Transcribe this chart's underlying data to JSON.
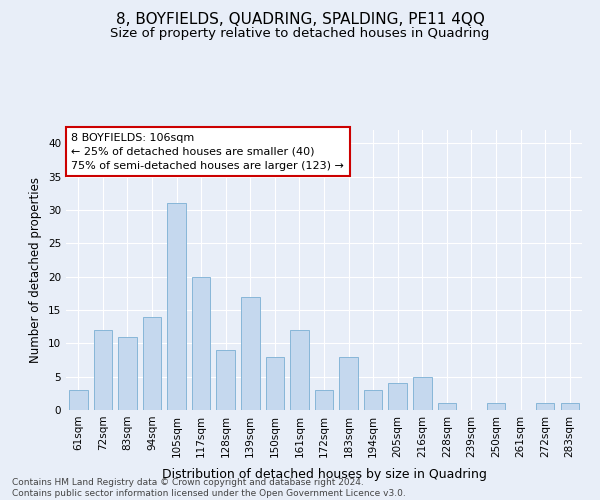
{
  "title": "8, BOYFIELDS, QUADRING, SPALDING, PE11 4QQ",
  "subtitle": "Size of property relative to detached houses in Quadring",
  "xlabel": "Distribution of detached houses by size in Quadring",
  "ylabel": "Number of detached properties",
  "categories": [
    "61sqm",
    "72sqm",
    "83sqm",
    "94sqm",
    "105sqm",
    "117sqm",
    "128sqm",
    "139sqm",
    "150sqm",
    "161sqm",
    "172sqm",
    "183sqm",
    "194sqm",
    "205sqm",
    "216sqm",
    "228sqm",
    "239sqm",
    "250sqm",
    "261sqm",
    "272sqm",
    "283sqm"
  ],
  "values": [
    3,
    12,
    11,
    14,
    31,
    20,
    9,
    17,
    8,
    12,
    3,
    8,
    3,
    4,
    5,
    1,
    0,
    1,
    0,
    1,
    1
  ],
  "bar_color": "#c5d8ee",
  "bar_edge_color": "#7aafd4",
  "highlight_color": "#4a90c4",
  "highlight_index": 4,
  "annotation_text": "8 BOYFIELDS: 106sqm\n← 25% of detached houses are smaller (40)\n75% of semi-detached houses are larger (123) →",
  "annotation_box_facecolor": "#ffffff",
  "annotation_box_edgecolor": "#cc0000",
  "background_color": "#e8eef8",
  "grid_color": "#ffffff",
  "ylim": [
    0,
    42
  ],
  "yticks": [
    0,
    5,
    10,
    15,
    20,
    25,
    30,
    35,
    40
  ],
  "footer": "Contains HM Land Registry data © Crown copyright and database right 2024.\nContains public sector information licensed under the Open Government Licence v3.0.",
  "title_fontsize": 11,
  "subtitle_fontsize": 9.5,
  "xlabel_fontsize": 9,
  "ylabel_fontsize": 8.5,
  "tick_fontsize": 7.5,
  "annotation_fontsize": 8,
  "footer_fontsize": 6.5
}
